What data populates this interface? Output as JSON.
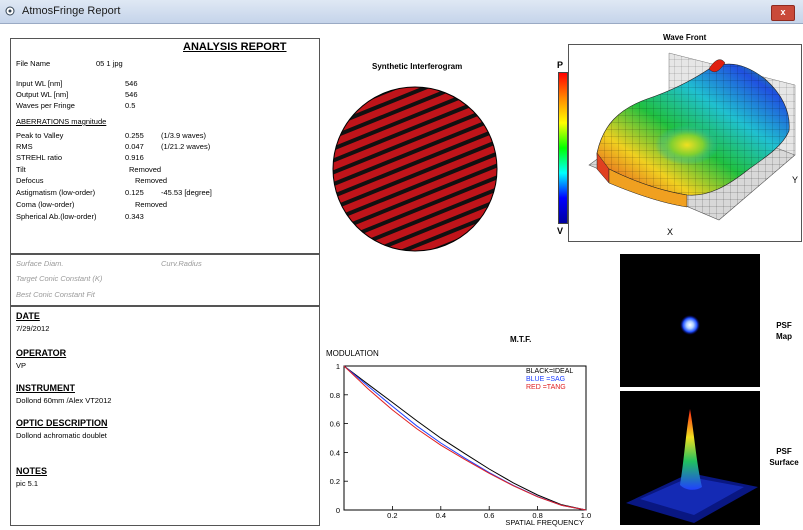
{
  "window": {
    "title": "AtmosFringe Report",
    "close_glyph": "x"
  },
  "report": {
    "title": "ANALYSIS  REPORT",
    "file_name_label": "File Name",
    "file_name_value": "05 1 jpg",
    "input_wl_label": "Input  WL [nm]",
    "input_wl_value": "546",
    "output_wl_label": "Output WL [nm]",
    "output_wl_value": "546",
    "waves_per_fringe_label": "Waves per Fringe",
    "waves_per_fringe_value": "0.5",
    "aberrations_heading": "ABERRATIONS magnitude",
    "ptv_label": "Peak to Valley",
    "ptv_value": "0.255",
    "ptv_note": "(1/3.9 waves)",
    "rms_label": "RMS",
    "rms_value": "0.047",
    "rms_note": "(1/21.2 waves)",
    "strehl_label": "STREHL ratio",
    "strehl_value": "0.916",
    "tilt_label": "Tilt",
    "tilt_value": "Removed",
    "defocus_label": "Defocus",
    "defocus_value": "Removed",
    "astig_label": "Astigmatism  (low-order)",
    "astig_value": "0.125",
    "astig_note": "-45.53  [degree]",
    "coma_label": "Coma         (low-order)",
    "coma_value": "Removed",
    "spherical_label": "Spherical Ab.(low-order)",
    "spherical_value": "0.343"
  },
  "conic": {
    "surface_diam": "Surface Diam.",
    "curv_radius": "Curv.Radius",
    "target_conic": "Target Conic Constant (K)",
    "best_conic": "Best Conic Constant Fit"
  },
  "info": {
    "date_heading": "DATE",
    "date_value": "7/29/2012",
    "operator_heading": "OPERATOR",
    "operator_value": "VP",
    "instrument_heading": "INSTRUMENT",
    "instrument_value": "Dollond 60mm /Alex VT2012",
    "optic_heading": "OPTIC DESCRIPTION",
    "optic_value": "Dollond achromatic doublet",
    "notes_heading": "NOTES",
    "notes_value": "pic 5.1"
  },
  "interferogram": {
    "title": "Synthetic Interferogram",
    "fringe_color": "#c0141a"
  },
  "wavefront": {
    "title": "Wave Front",
    "scale_top": "P",
    "scale_bottom": "V",
    "axis_x": "X",
    "axis_y": "Y"
  },
  "psf": {
    "map_label_1": "PSF",
    "map_label_2": "Map",
    "surface_label_1": "PSF",
    "surface_label_2": "Surface"
  },
  "chart_data": {
    "type": "line",
    "title": "M.T.F.",
    "ylabel": "MODULATION",
    "xlabel": "SPATIAL FREQUENCY",
    "xlim": [
      0,
      1
    ],
    "ylim": [
      0,
      1
    ],
    "x_ticks": [
      "0.2",
      "0.4",
      "0.6",
      "0.8",
      "1.0"
    ],
    "y_ticks": [
      "0",
      "0.2",
      "0.4",
      "0.6",
      "0.8",
      "1"
    ],
    "legend": [
      {
        "label": "BLACK=IDEAL",
        "color": "#000000"
      },
      {
        "label": "BLUE   =SAG",
        "color": "#2040ff"
      },
      {
        "label": "RED    =TANG",
        "color": "#e02020"
      }
    ],
    "x": [
      0,
      0.1,
      0.2,
      0.3,
      0.4,
      0.5,
      0.6,
      0.7,
      0.8,
      0.9,
      1.0
    ],
    "series": [
      {
        "color": "#000000",
        "values": [
          1.0,
          0.873,
          0.747,
          0.621,
          0.499,
          0.391,
          0.285,
          0.188,
          0.104,
          0.036,
          0.0
        ]
      },
      {
        "color": "#2040ff",
        "values": [
          1.0,
          0.86,
          0.72,
          0.585,
          0.465,
          0.36,
          0.26,
          0.17,
          0.093,
          0.032,
          0.0
        ]
      },
      {
        "color": "#e02020",
        "values": [
          1.0,
          0.84,
          0.695,
          0.565,
          0.45,
          0.35,
          0.255,
          0.168,
          0.092,
          0.032,
          0.0
        ]
      }
    ]
  }
}
